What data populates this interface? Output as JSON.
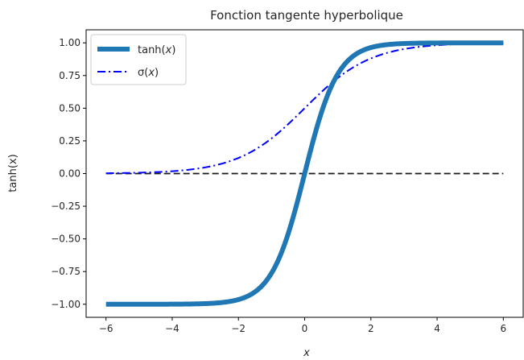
{
  "chart_data": {
    "type": "line",
    "title": "Fonction tangente hyperbolique",
    "xlabel": "x",
    "ylabel": "tanh(x)",
    "xlim": [
      -6.6,
      6.6
    ],
    "ylim": [
      -1.1,
      1.1
    ],
    "xticks": [
      -6,
      -4,
      -2,
      0,
      2,
      4,
      6
    ],
    "xtick_labels": [
      "−6",
      "−4",
      "−2",
      "0",
      "2",
      "4",
      "6"
    ],
    "yticks": [
      -1.0,
      -0.75,
      -0.5,
      -0.25,
      0.0,
      0.25,
      0.5,
      0.75,
      1.0
    ],
    "ytick_labels": [
      "−1.00",
      "−0.75",
      "−0.50",
      "−0.25",
      "0.00",
      "0.25",
      "0.50",
      "0.75",
      "1.00"
    ],
    "grid": false,
    "legend_position": "upper-left",
    "series": [
      {
        "name": "tanh(x)",
        "color": "#1f77b4",
        "style": "solid-thick",
        "x": [
          -6,
          -5,
          -4,
          -3,
          -2.5,
          -2,
          -1.5,
          -1,
          -0.5,
          0,
          0.5,
          1,
          1.5,
          2,
          2.5,
          3,
          4,
          5,
          6
        ],
        "y": [
          -1.0,
          -0.9999,
          -0.9993,
          -0.9951,
          -0.9866,
          -0.964,
          -0.9051,
          -0.7616,
          -0.4621,
          0.0,
          0.4621,
          0.7616,
          0.9051,
          0.964,
          0.9866,
          0.9951,
          0.9993,
          0.9999,
          1.0
        ]
      },
      {
        "name": "σ(x)",
        "color": "#0000ff",
        "style": "dash-dot",
        "x": [
          -6,
          -5,
          -4,
          -3,
          -2.5,
          -2,
          -1.5,
          -1,
          -0.5,
          0,
          0.5,
          1,
          1.5,
          2,
          2.5,
          3,
          4,
          5,
          6
        ],
        "y": [
          0.0049,
          0.0134,
          0.0356,
          0.0902,
          0.1347,
          0.1915,
          0.2564,
          0.3245,
          0.3962,
          0.4621,
          0.6225,
          0.7311,
          0.8176,
          0.8808,
          0.9241,
          0.9526,
          0.982,
          0.9933,
          0.9975
        ]
      },
      {
        "color": "#1a1a1a",
        "style": "dashed",
        "x": [
          -6,
          6
        ],
        "y": [
          0,
          0
        ]
      }
    ],
    "legend": [
      {
        "label_main": "tanh(",
        "label_var": "x",
        "label_end": ")",
        "style": "solid-thick",
        "color": "#1f77b4"
      },
      {
        "label_main": "σ(",
        "label_var": "x",
        "label_end": ")",
        "style": "dash-dot",
        "color": "#0000ff"
      }
    ]
  }
}
